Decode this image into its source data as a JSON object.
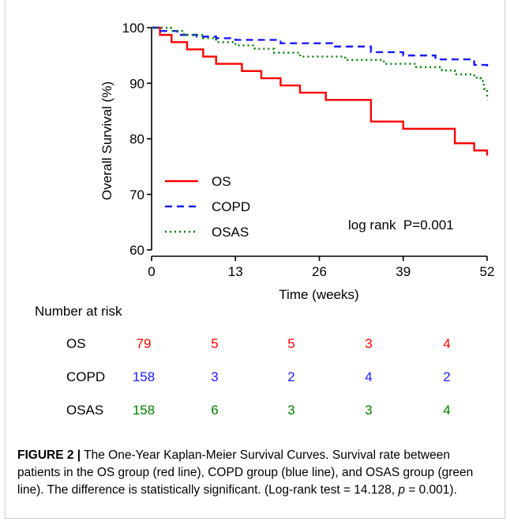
{
  "chart_data": {
    "type": "line",
    "xlabel": "Time (weeks)",
    "ylabel": "Overall Survival (%)",
    "xlim": [
      0,
      52
    ],
    "ylim": [
      60,
      100
    ],
    "xticks": [
      "0",
      "13",
      "26",
      "39",
      "52"
    ],
    "yticks": [
      "60",
      "70",
      "80",
      "90",
      "100"
    ],
    "legend_position": "bottom-left",
    "annotation": "log rank  P=0.001",
    "series": [
      {
        "name": "OS",
        "color": "#ff0000",
        "style": "solid",
        "x": [
          0,
          1.3,
          3.1,
          5.5,
          8,
          10,
          14,
          17,
          20,
          23,
          27,
          34,
          39,
          47,
          50,
          52
        ],
        "y": [
          100,
          98.7,
          97.4,
          96.1,
          94.8,
          93.5,
          92.2,
          90.9,
          89.6,
          88.3,
          87,
          83.1,
          81.8,
          79.2,
          77.9,
          77
        ]
      },
      {
        "name": "COPD",
        "color": "#1a1aff",
        "style": "dashed",
        "x": [
          0,
          1,
          4,
          7,
          10,
          13,
          20,
          28,
          34,
          39,
          44,
          50,
          52
        ],
        "y": [
          100,
          99.4,
          98.7,
          98.4,
          98.1,
          97.8,
          97.2,
          96.6,
          95.6,
          95,
          94.3,
          93.3,
          93
        ]
      },
      {
        "name": "OSAS",
        "color": "#008000",
        "style": "dotted",
        "x": [
          0,
          3,
          5,
          8,
          10,
          13,
          16,
          19,
          23,
          30,
          36,
          41,
          45,
          47,
          50,
          51,
          51.5,
          52
        ],
        "y": [
          100,
          99.4,
          98.7,
          98.1,
          97.4,
          96.8,
          96.2,
          95.5,
          94.8,
          94.2,
          93.5,
          92.9,
          92.3,
          91.6,
          91,
          90.4,
          89,
          87
        ]
      }
    ]
  },
  "risk_table": {
    "title": "Number at risk",
    "rows": [
      {
        "label": "OS",
        "color": "#ff0000",
        "values": [
          "79",
          "5",
          "5",
          "3",
          "4"
        ]
      },
      {
        "label": "COPD",
        "color": "#1a1aff",
        "values": [
          "158",
          "3",
          "2",
          "4",
          "2"
        ]
      },
      {
        "label": "OSAS",
        "color": "#008000",
        "values": [
          "158",
          "6",
          "3",
          "3",
          "4"
        ]
      }
    ]
  },
  "caption": {
    "label": "FIGURE 2 |",
    "text": " The One-Year Kaplan-Meier Survival Curves. Survival rate between patients in the OS group (red line), COPD group (blue line), and OSAS group (green line). The difference is statistically significant. (Log-rank test = 14.128, ",
    "p_symbol": "p",
    "p_text": " = 0.001)."
  }
}
